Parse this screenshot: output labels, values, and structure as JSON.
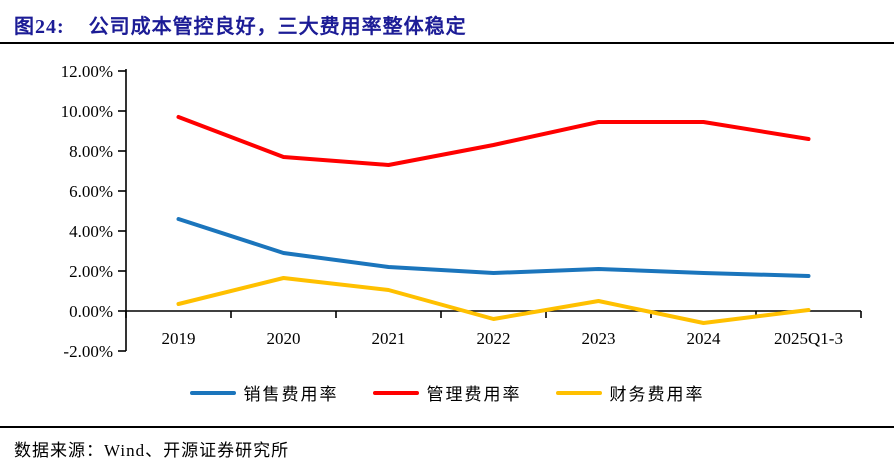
{
  "header": {
    "figure_label": "图24:",
    "title": "公司成本管控良好，三大费用率整体稳定"
  },
  "footer": {
    "source_label": "数据来源：",
    "source_text": "Wind、开源证券研究所"
  },
  "colors": {
    "title": "#1C1C96",
    "axis": "#000000",
    "sales": "#1B75BC",
    "admin": "#FF0000",
    "finance": "#FFC000"
  },
  "chart_data": {
    "type": "line",
    "title": "公司成本管控良好，三大费用率整体稳定",
    "categories": [
      "2019",
      "2020",
      "2021",
      "2022",
      "2023",
      "2024",
      "2025Q1-3"
    ],
    "series": [
      {
        "name": "销售费用率",
        "color_key": "sales",
        "values": [
          4.6,
          2.9,
          2.2,
          1.9,
          2.1,
          1.9,
          1.75
        ]
      },
      {
        "name": "管理费用率",
        "color_key": "admin",
        "values": [
          9.7,
          7.7,
          7.3,
          8.3,
          9.45,
          9.45,
          8.6
        ]
      },
      {
        "name": "财务费用率",
        "color_key": "finance",
        "values": [
          0.35,
          1.65,
          1.05,
          -0.4,
          0.5,
          -0.6,
          0.05
        ]
      }
    ],
    "y_axis": {
      "min": -2,
      "max": 12,
      "step": 2,
      "unit": "%",
      "decimals": 2
    },
    "x_axis": {
      "ticks": "between-categories"
    },
    "legend_position": "bottom",
    "grid": false
  }
}
